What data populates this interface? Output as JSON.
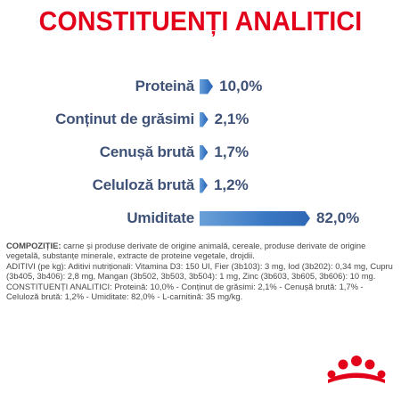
{
  "title": "CONSTITUENȚI ANALITICI",
  "chart_data": {
    "type": "bar",
    "orientation": "horizontal",
    "categories": [
      "Proteină",
      "Conținut de grăsimi",
      "Cenușă brută",
      "Celuloză brută",
      "Umiditate"
    ],
    "values": [
      10.0,
      2.1,
      1.7,
      1.2,
      82.0
    ],
    "value_labels": [
      "10,0%",
      "2,1%",
      "1,7%",
      "1,2%",
      "82,0%"
    ],
    "xlim": [
      0,
      82.0
    ],
    "unit": "%",
    "bar_color": "#3a78c4",
    "label_color": "#3f5277"
  },
  "composition": {
    "heading": "COMPOZIȚIE:",
    "text": " carne și produse derivate de origine animală, cereale, produse derivate de origine vegetală, substanțe minerale, extracte de proteine vegetale, drojdii.",
    "additives": "ADITIVI (pe kg): Aditivi nutriționali: Vitamina D3: 150 UI, Fier (3b103): 3 mg, Iod (3b202): 0,34 mg, Cupru (3b405, 3b406): 2,8 mg, Mangan (3b502, 3b503, 3b504): 1 mg, Zinc (3b603, 3b605, 3b606): 10 mg.",
    "constituents": "CONSTITUENȚI ANALITICI: Proteină: 10,0% - Conținut de grăsimi: 2,1% - Cenușă brută: 1,7% - Celuloză brută: 1,2% - Umiditate: 82,0% - L-carnitină: 35 mg/kg."
  },
  "colors": {
    "title": "#e2001a",
    "logo": "#e2001a"
  },
  "logo_icon": "royal-canin-crown-icon"
}
